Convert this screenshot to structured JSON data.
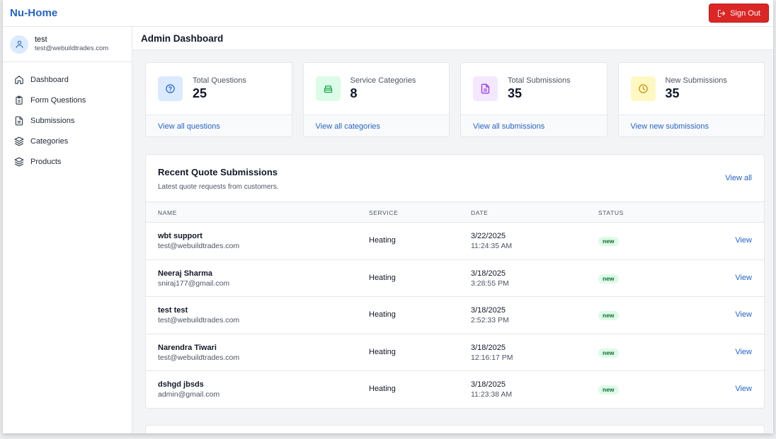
{
  "header": {
    "brand": "Nu-Home",
    "signout_label": "Sign Out"
  },
  "user": {
    "name": "test",
    "email": "test@webuildtrades.com"
  },
  "nav": [
    {
      "label": "Dashboard",
      "icon": "home-icon"
    },
    {
      "label": "Form Questions",
      "icon": "clipboard-icon"
    },
    {
      "label": "Submissions",
      "icon": "document-icon"
    },
    {
      "label": "Categories",
      "icon": "layers-icon"
    },
    {
      "label": "Products",
      "icon": "layers-icon"
    }
  ],
  "page": {
    "title": "Admin Dashboard"
  },
  "stats": [
    {
      "label": "Total Questions",
      "value": "25",
      "link": "View all questions",
      "icon": "question-circle-icon",
      "tint": "#dbeafe",
      "color": "#2563c9"
    },
    {
      "label": "Service Categories",
      "value": "8",
      "link": "View all categories",
      "icon": "box-icon",
      "tint": "#dcfce7",
      "color": "#16a34a"
    },
    {
      "label": "Total Submissions",
      "value": "35",
      "link": "View all submissions",
      "icon": "document-icon",
      "tint": "#f3e8ff",
      "color": "#9333ea"
    },
    {
      "label": "New Submissions",
      "value": "35",
      "link": "View new submissions",
      "icon": "clock-icon",
      "tint": "#fef9c3",
      "color": "#ca8a04"
    }
  ],
  "recent": {
    "title": "Recent Quote Submissions",
    "subtitle": "Latest quote requests from customers.",
    "view_all": "View all",
    "columns": {
      "name": "NAME",
      "service": "SERVICE",
      "date": "DATE",
      "status": "STATUS"
    },
    "rows": [
      {
        "name": "wbt support",
        "email": "test@webuildtrades.com",
        "service": "Heating",
        "date": "3/22/2025",
        "time": "11:24:35 AM",
        "status": "new",
        "action": "View"
      },
      {
        "name": "Neeraj Sharma",
        "email": "sniraj177@gmail.com",
        "service": "Heating",
        "date": "3/18/2025",
        "time": "3:28:55 PM",
        "status": "new",
        "action": "View"
      },
      {
        "name": "test test",
        "email": "test@webuildtrades.com",
        "service": "Heating",
        "date": "3/18/2025",
        "time": "2:52:33 PM",
        "status": "new",
        "action": "View"
      },
      {
        "name": "Narendra Tiwari",
        "email": "test@webuildtrades.com",
        "service": "Heating",
        "date": "3/18/2025",
        "time": "12:16:17 PM",
        "status": "new",
        "action": "View"
      },
      {
        "name": "dshgd jbsds",
        "email": "admin@gmail.com",
        "service": "Heating",
        "date": "3/18/2025",
        "time": "11:23:38 AM",
        "status": "new",
        "action": "View"
      }
    ]
  },
  "colors": {
    "brand": "#2563c9",
    "danger": "#dc2626",
    "badge_bg": "#dcfce7",
    "badge_fg": "#166534"
  }
}
